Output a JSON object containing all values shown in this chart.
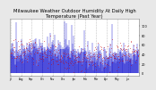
{
  "title": "Milwaukee Weather Outdoor Humidity At Daily High\nTemperature (Past Year)",
  "bg_color": "#e8e8e8",
  "plot_bg": "#ffffff",
  "ylim": [
    -5,
    115
  ],
  "ytick_vals": [
    0,
    20,
    40,
    60,
    80,
    100
  ],
  "ytick_labels": [
    "0",
    "20",
    "40",
    "60",
    "80",
    "100"
  ],
  "num_points": 365,
  "blue_color": "#0000cc",
  "red_color": "#cc0000",
  "grid_color": "#bbbbbb",
  "title_fontsize": 3.8,
  "random_seed": 42,
  "month_days": [
    0,
    31,
    59,
    90,
    120,
    151,
    181,
    212,
    243,
    273,
    304,
    334
  ],
  "month_labels": [
    "Jul",
    "Aug",
    "Sep",
    "Oct",
    "Nov",
    "Dec",
    "Jan",
    "Feb",
    "Mar",
    "Apr",
    "May",
    "Jun"
  ],
  "spike_days": [
    15,
    155,
    160,
    175,
    290
  ],
  "spike_vals": [
    108,
    110,
    107,
    103,
    105
  ]
}
